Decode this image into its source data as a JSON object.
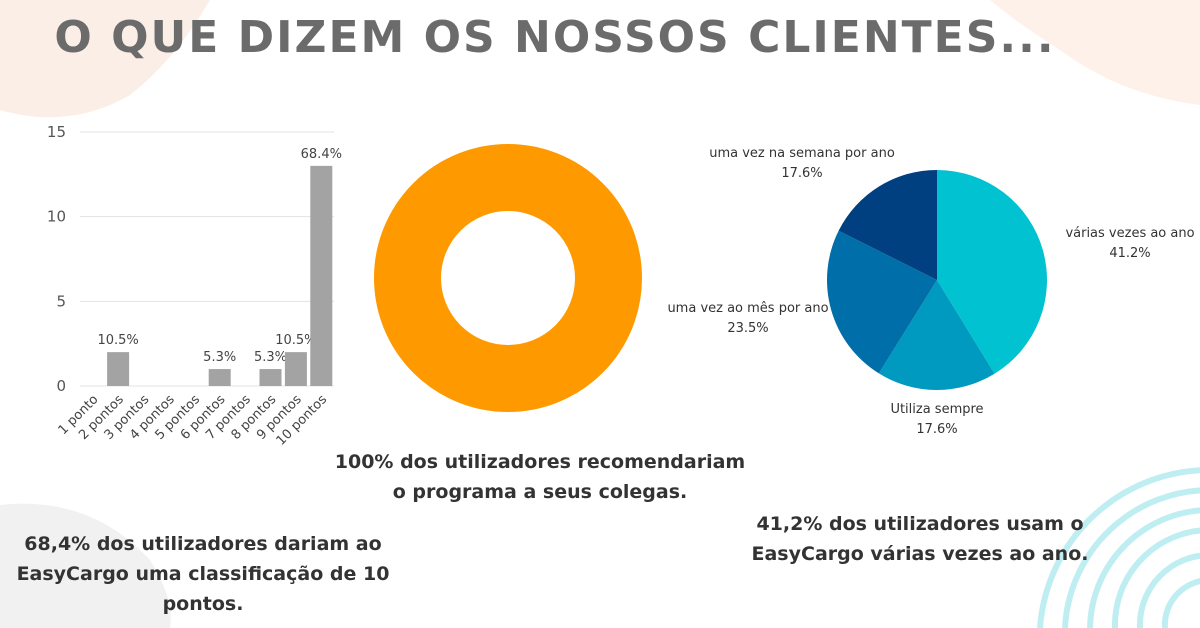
{
  "colors": {
    "bar": "#a3a3a3",
    "grid": "#e3e3e3",
    "donut": "#ff9900",
    "title": "#6b6b6b",
    "deco_peach": "#fbeee6",
    "deco_grey": "#f1f1f1",
    "deco_cyan": "#bfeef2"
  },
  "title": "O QUE DIZEM OS NOSSOS CLIENTES...",
  "captions": {
    "bar": [
      "68,4% dos utilizadores dariam ao",
      "EasyCargo uma classificação de 10",
      "pontos."
    ],
    "donut": [
      "100% dos utilizadores recomendariam",
      "o programa a seus colegas."
    ],
    "pie": [
      "41,2% dos utilizadores usam o",
      "EasyCargo várias vezes ao ano."
    ]
  },
  "chart_data": [
    {
      "type": "bar",
      "categories": [
        "1 ponto",
        "2 pontos",
        "3 pontos",
        "4 pontos",
        "5 pontos",
        "6 pontos",
        "7 pontos",
        "8 pontos",
        "9 pontos",
        "10 pontos"
      ],
      "values": [
        0,
        2,
        0,
        0,
        0,
        1,
        0,
        1,
        2,
        13
      ],
      "data_labels": [
        "",
        "10.5%",
        "",
        "",
        "",
        "5.3%",
        "",
        "5.3%",
        "10.5%",
        "68.4%"
      ],
      "yticks": [
        0,
        5,
        10,
        15
      ],
      "ylim": [
        0,
        15
      ],
      "grid": true
    },
    {
      "type": "pie",
      "donut": true,
      "labels": [
        ""
      ],
      "values": [
        100
      ]
    },
    {
      "type": "pie",
      "slices": [
        {
          "label": "várias vezes ao ano",
          "pct": "41.2%",
          "value": 41.2,
          "color": "#00c2d1"
        },
        {
          "label": "Utiliza sempre",
          "pct": "17.6%",
          "value": 17.6,
          "color": "#0099bf"
        },
        {
          "label": "uma vez ao mês por ano",
          "pct": "23.5%",
          "value": 23.5,
          "color": "#006ea8"
        },
        {
          "label": "uma vez na semana por ano",
          "pct": "17.6%",
          "value": 17.6,
          "color": "#003f80"
        }
      ]
    }
  ]
}
